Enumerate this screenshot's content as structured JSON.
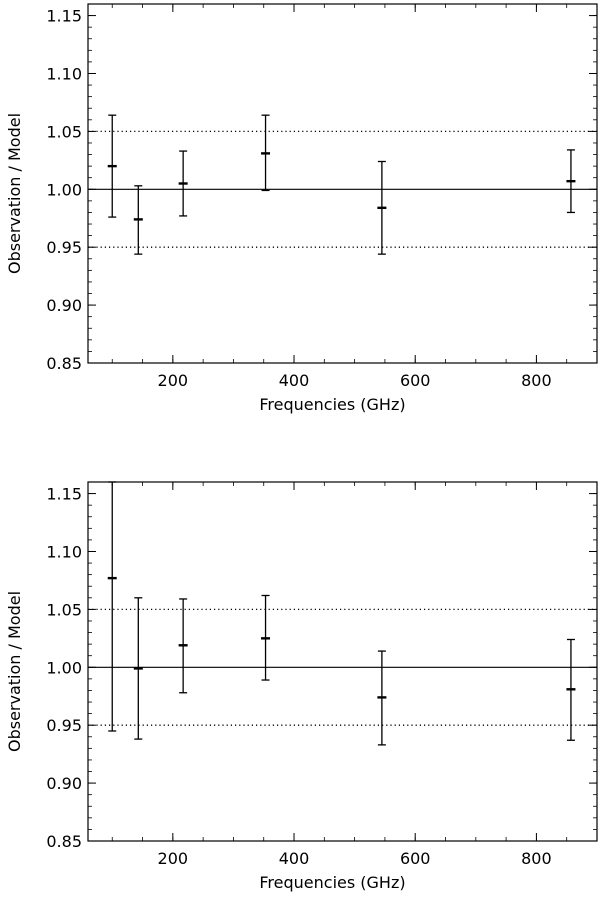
{
  "chart_data": [
    {
      "type": "scatter",
      "xlabel": "Frequencies (GHz)",
      "ylabel": "Observation  / Model",
      "xlim": [
        60,
        900
      ],
      "ylim": [
        0.85,
        1.16
      ],
      "x_ticks": [
        200,
        400,
        600,
        800
      ],
      "x_tick_labels": [
        "200",
        "400",
        "600",
        "800"
      ],
      "y_ticks": [
        0.85,
        0.9,
        0.95,
        1.0,
        1.05,
        1.1,
        1.15
      ],
      "y_tick_labels": [
        "0.85",
        "0.90",
        "0.95",
        "1.00",
        "1.05",
        "1.10",
        "1.15"
      ],
      "reference_lines": [
        {
          "y": 1.0,
          "style": "solid"
        },
        {
          "y": 1.05,
          "style": "dotted"
        },
        {
          "y": 0.95,
          "style": "dotted"
        }
      ],
      "grid": false,
      "series": [
        {
          "points": [
            {
              "x": 100,
              "y": 1.02,
              "ylow": 0.976,
              "yhigh": 1.064
            },
            {
              "x": 143,
              "y": 0.974,
              "ylow": 0.944,
              "yhigh": 1.003
            },
            {
              "x": 217,
              "y": 1.005,
              "ylow": 0.977,
              "yhigh": 1.033
            },
            {
              "x": 353,
              "y": 1.031,
              "ylow": 0.999,
              "yhigh": 1.064
            },
            {
              "x": 545,
              "y": 0.984,
              "ylow": 0.944,
              "yhigh": 1.024
            },
            {
              "x": 857,
              "y": 1.007,
              "ylow": 0.98,
              "yhigh": 1.034
            }
          ]
        }
      ]
    },
    {
      "type": "scatter",
      "xlabel": "Frequencies (GHz)",
      "ylabel": "Observation  / Model",
      "xlim": [
        60,
        900
      ],
      "ylim": [
        0.85,
        1.16
      ],
      "x_ticks": [
        200,
        400,
        600,
        800
      ],
      "x_tick_labels": [
        "200",
        "400",
        "600",
        "800"
      ],
      "y_ticks": [
        0.85,
        0.9,
        0.95,
        1.0,
        1.05,
        1.1,
        1.15
      ],
      "y_tick_labels": [
        "0.85",
        "0.90",
        "0.95",
        "1.00",
        "1.05",
        "1.10",
        "1.15"
      ],
      "reference_lines": [
        {
          "y": 1.0,
          "style": "solid"
        },
        {
          "y": 1.05,
          "style": "dotted"
        },
        {
          "y": 0.95,
          "style": "dotted"
        }
      ],
      "grid": false,
      "series": [
        {
          "points": [
            {
              "x": 100,
              "y": 1.077,
              "ylow": 0.945,
              "yhigh": 1.16
            },
            {
              "x": 143,
              "y": 0.999,
              "ylow": 0.938,
              "yhigh": 1.06
            },
            {
              "x": 217,
              "y": 1.019,
              "ylow": 0.978,
              "yhigh": 1.059
            },
            {
              "x": 353,
              "y": 1.025,
              "ylow": 0.989,
              "yhigh": 1.062
            },
            {
              "x": 545,
              "y": 0.974,
              "ylow": 0.933,
              "yhigh": 1.014
            },
            {
              "x": 857,
              "y": 0.981,
              "ylow": 0.937,
              "yhigh": 1.024
            }
          ]
        }
      ]
    }
  ]
}
